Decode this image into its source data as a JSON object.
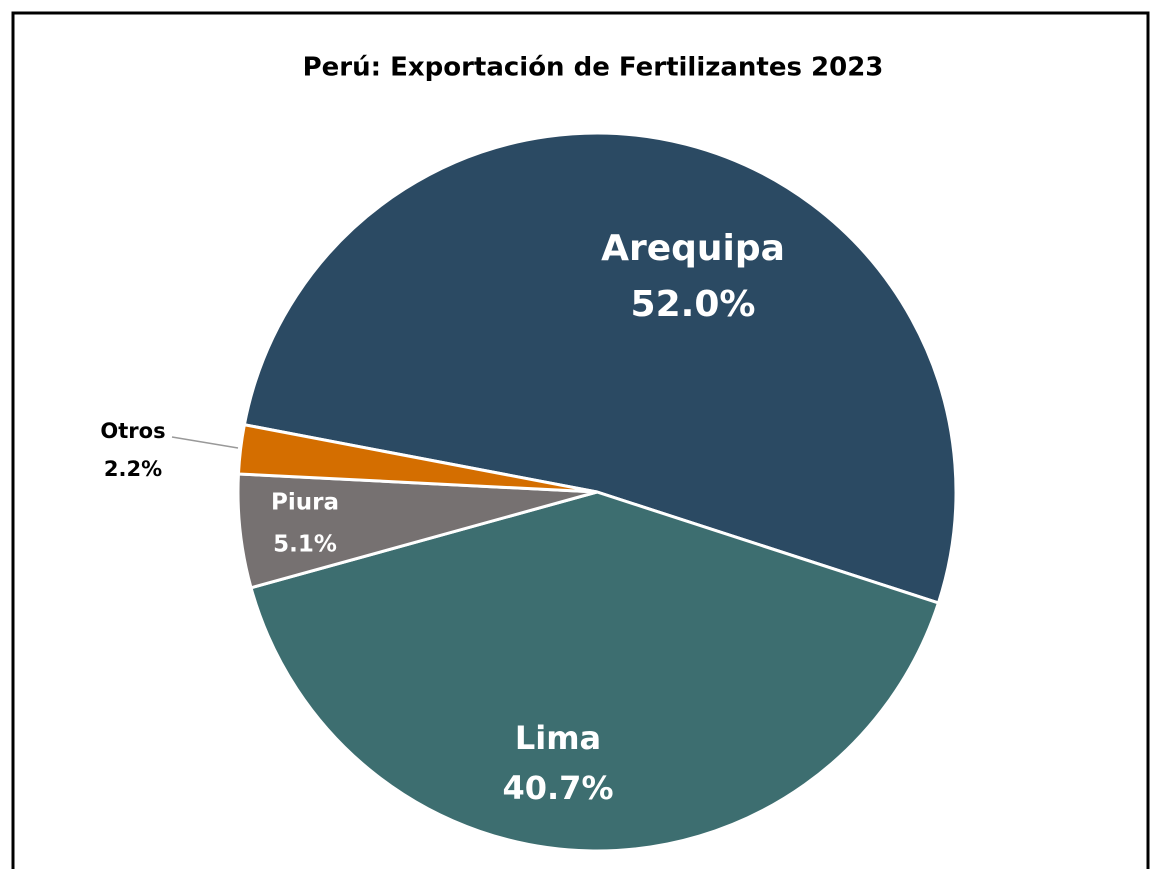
{
  "chart_data": {
    "type": "pie",
    "title": "Perú: Exportación de Fertilizantes 2023",
    "categories": [
      "Arequipa",
      "Lima",
      "Piura",
      "Otros"
    ],
    "values": [
      52.0,
      40.7,
      5.1,
      2.2
    ],
    "value_labels": [
      "52.0%",
      "40.7%",
      "5.1%",
      "2.2%"
    ],
    "colors": [
      "#2b4a63",
      "#3d6e70",
      "#767171",
      "#d46e00"
    ]
  }
}
